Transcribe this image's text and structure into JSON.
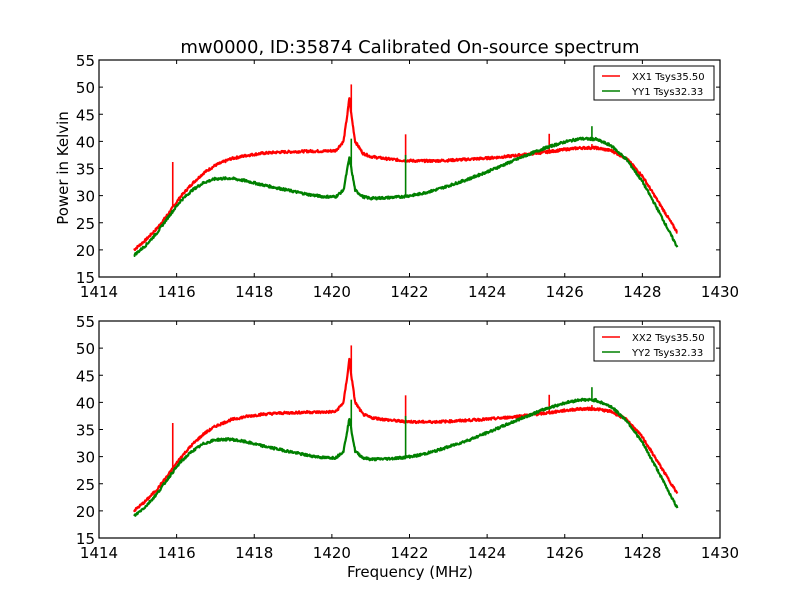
{
  "chart_data": [
    {
      "type": "line",
      "title": "mw0000, ID:35874 Calibrated On-source spectrum",
      "xlabel": "",
      "ylabel": "Power in Kelvin",
      "xlim": [
        1414,
        1430
      ],
      "ylim": [
        15,
        55
      ],
      "xticks": [
        "1414",
        "1416",
        "1418",
        "1420",
        "1422",
        "1424",
        "1426",
        "1428",
        "1430"
      ],
      "yticks": [
        "15",
        "20",
        "25",
        "30",
        "35",
        "40",
        "45",
        "50",
        "55"
      ],
      "legend_position": "top-right",
      "grid": false,
      "series": [
        {
          "name": "XX1 Tsys35.50",
          "color": "#ff0000",
          "x": [
            1414.9,
            1415.2,
            1415.5,
            1415.8,
            1416.1,
            1416.4,
            1416.7,
            1417.0,
            1417.4,
            1417.8,
            1418.2,
            1418.6,
            1419.0,
            1419.4,
            1419.8,
            1420.1,
            1420.3,
            1420.4,
            1420.45,
            1420.5,
            1420.6,
            1420.8,
            1421.0,
            1421.4,
            1421.8,
            1422.2,
            1422.6,
            1423.0,
            1423.5,
            1424.0,
            1424.5,
            1425.0,
            1425.5,
            1426.0,
            1426.4,
            1426.8,
            1427.2,
            1427.6,
            1428.0,
            1428.4,
            1428.9
          ],
          "y": [
            20,
            21.8,
            24,
            26.8,
            29.8,
            32.2,
            34.2,
            35.6,
            36.8,
            37.4,
            37.8,
            38.0,
            38.1,
            38.2,
            38.2,
            38.3,
            40,
            45,
            48,
            45,
            40,
            37.8,
            37.2,
            36.8,
            36.5,
            36.4,
            36.4,
            36.5,
            36.7,
            36.9,
            37.2,
            37.6,
            38.0,
            38.5,
            38.8,
            38.8,
            38.3,
            36.8,
            33.6,
            29.0,
            23.2
          ],
          "spikes": [
            {
              "x": 1415.9,
              "y": 36.2
            },
            {
              "x": 1420.5,
              "y": 50.5
            },
            {
              "x": 1421.9,
              "y": 41.3
            },
            {
              "x": 1425.6,
              "y": 41.4
            },
            {
              "x": 1426.7,
              "y": 39.5
            }
          ]
        },
        {
          "name": "YY1 Tsys32.33",
          "color": "#008000",
          "x": [
            1414.9,
            1415.2,
            1415.5,
            1415.8,
            1416.1,
            1416.4,
            1416.7,
            1417.0,
            1417.4,
            1417.8,
            1418.2,
            1418.6,
            1419.0,
            1419.4,
            1419.8,
            1420.1,
            1420.3,
            1420.4,
            1420.45,
            1420.5,
            1420.6,
            1420.8,
            1421.0,
            1421.4,
            1421.8,
            1422.2,
            1422.6,
            1423.0,
            1423.5,
            1424.0,
            1424.5,
            1425.0,
            1425.5,
            1426.0,
            1426.4,
            1426.8,
            1427.2,
            1427.6,
            1428.0,
            1428.4,
            1428.9
          ],
          "y": [
            19,
            20.8,
            23.2,
            26.2,
            29.0,
            31.0,
            32.4,
            33.1,
            33.2,
            32.7,
            32.0,
            31.4,
            30.8,
            30.2,
            29.8,
            29.8,
            31,
            35,
            37,
            35,
            31,
            29.8,
            29.5,
            29.6,
            29.8,
            30.2,
            30.9,
            31.8,
            33.0,
            34.4,
            35.9,
            37.4,
            38.8,
            39.9,
            40.5,
            40.4,
            39.2,
            36.6,
            32.6,
            27.4,
            20.5
          ],
          "spikes": [
            {
              "x": 1420.5,
              "y": 40.5
            },
            {
              "x": 1421.9,
              "y": 37.5
            },
            {
              "x": 1426.7,
              "y": 42.8
            }
          ]
        }
      ]
    },
    {
      "type": "line",
      "title": "",
      "xlabel": "Frequency (MHz)",
      "ylabel": "",
      "xlim": [
        1414,
        1430
      ],
      "ylim": [
        15,
        55
      ],
      "xticks": [
        "1414",
        "1416",
        "1418",
        "1420",
        "1422",
        "1424",
        "1426",
        "1428",
        "1430"
      ],
      "yticks": [
        "15",
        "20",
        "25",
        "30",
        "35",
        "40",
        "45",
        "50",
        "55"
      ],
      "legend_position": "top-right",
      "grid": false,
      "series": [
        {
          "name": "XX2 Tsys35.50",
          "color": "#ff0000",
          "x": [
            1414.9,
            1415.2,
            1415.5,
            1415.8,
            1416.1,
            1416.4,
            1416.7,
            1417.0,
            1417.4,
            1417.8,
            1418.2,
            1418.6,
            1419.0,
            1419.4,
            1419.8,
            1420.1,
            1420.3,
            1420.4,
            1420.45,
            1420.5,
            1420.6,
            1420.8,
            1421.0,
            1421.4,
            1421.8,
            1422.2,
            1422.6,
            1423.0,
            1423.5,
            1424.0,
            1424.5,
            1425.0,
            1425.5,
            1426.0,
            1426.4,
            1426.8,
            1427.2,
            1427.6,
            1428.0,
            1428.4,
            1428.9
          ],
          "y": [
            20,
            21.8,
            24,
            26.8,
            29.8,
            32.2,
            34.2,
            35.6,
            36.8,
            37.4,
            37.8,
            38.0,
            38.1,
            38.2,
            38.2,
            38.3,
            40,
            45,
            48,
            45,
            40,
            37.8,
            37.2,
            36.8,
            36.5,
            36.4,
            36.4,
            36.5,
            36.7,
            36.9,
            37.2,
            37.6,
            38.0,
            38.5,
            38.8,
            38.8,
            38.3,
            36.8,
            33.6,
            29.0,
            23.2
          ],
          "spikes": [
            {
              "x": 1415.9,
              "y": 36.2
            },
            {
              "x": 1420.5,
              "y": 50.5
            },
            {
              "x": 1421.9,
              "y": 41.3
            },
            {
              "x": 1425.6,
              "y": 41.4
            },
            {
              "x": 1426.7,
              "y": 39.5
            }
          ]
        },
        {
          "name": "YY2 Tsys32.33",
          "color": "#008000",
          "x": [
            1414.9,
            1415.2,
            1415.5,
            1415.8,
            1416.1,
            1416.4,
            1416.7,
            1417.0,
            1417.4,
            1417.8,
            1418.2,
            1418.6,
            1419.0,
            1419.4,
            1419.8,
            1420.1,
            1420.3,
            1420.4,
            1420.45,
            1420.5,
            1420.6,
            1420.8,
            1421.0,
            1421.4,
            1421.8,
            1422.2,
            1422.6,
            1423.0,
            1423.5,
            1424.0,
            1424.5,
            1425.0,
            1425.5,
            1426.0,
            1426.4,
            1426.8,
            1427.2,
            1427.6,
            1428.0,
            1428.4,
            1428.9
          ],
          "y": [
            19,
            20.8,
            23.2,
            26.2,
            29.0,
            31.0,
            32.4,
            33.1,
            33.2,
            32.7,
            32.0,
            31.4,
            30.8,
            30.2,
            29.8,
            29.8,
            31,
            35,
            37,
            35,
            31,
            29.8,
            29.5,
            29.6,
            29.8,
            30.2,
            30.9,
            31.8,
            33.0,
            34.4,
            35.9,
            37.4,
            38.8,
            39.9,
            40.5,
            40.4,
            39.2,
            36.6,
            32.6,
            27.4,
            20.5
          ],
          "spikes": [
            {
              "x": 1420.5,
              "y": 40.5
            },
            {
              "x": 1421.9,
              "y": 37.5
            },
            {
              "x": 1426.7,
              "y": 42.8
            }
          ]
        }
      ]
    }
  ]
}
